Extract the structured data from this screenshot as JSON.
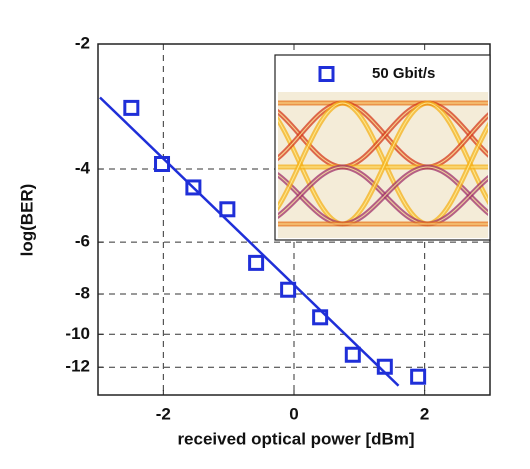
{
  "chart_data": {
    "type": "scatter",
    "xlabel": "received optical power [dBm]",
    "ylabel": "log(BER)",
    "xlim": [
      -3,
      3
    ],
    "xticks": [
      -2,
      0,
      2
    ],
    "ylim": [
      -2,
      -14
    ],
    "yticks": [
      -2,
      -4,
      -6,
      -8,
      -10,
      -12
    ],
    "yscale": "log-negative",
    "grid": true,
    "legend": "upper right",
    "series": [
      {
        "name": "50 Gbit/s",
        "color": "#1f2fd8",
        "marker": "square",
        "x": [
          -2.49,
          -2.02,
          -1.54,
          -1.02,
          -0.58,
          -0.09,
          0.4,
          0.9,
          1.39,
          1.9
        ],
        "values": [
          -2.85,
          -3.89,
          -4.43,
          -5.0,
          -6.73,
          -7.81,
          -9.1,
          -11.2,
          -11.97,
          -12.65
        ]
      },
      {
        "color": "#1f2fd8",
        "marker": "line",
        "x": [
          -2.97,
          1.6
        ],
        "values": [
          -2.69,
          -13.3
        ]
      }
    ]
  }
}
